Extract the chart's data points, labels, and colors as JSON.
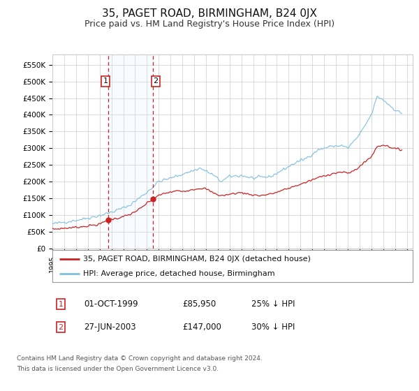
{
  "title": "35, PAGET ROAD, BIRMINGHAM, B24 0JX",
  "subtitle": "Price paid vs. HM Land Registry's House Price Index (HPI)",
  "title_fontsize": 11,
  "subtitle_fontsize": 9,
  "ylabel_ticks": [
    "£0",
    "£50K",
    "£100K",
    "£150K",
    "£200K",
    "£250K",
    "£300K",
    "£350K",
    "£400K",
    "£450K",
    "£500K",
    "£550K"
  ],
  "ytick_values": [
    0,
    50000,
    100000,
    150000,
    200000,
    250000,
    300000,
    350000,
    400000,
    450000,
    500000,
    550000
  ],
  "ylim": [
    0,
    580000
  ],
  "xlim_start": 1995.0,
  "xlim_end": 2025.5,
  "background_color": "#ffffff",
  "grid_color": "#cccccc",
  "hpi_line_color": "#7fbfdf",
  "price_line_color": "#cc2222",
  "annotation_box_color": "#cc2222",
  "shade_color": "#ddeeff",
  "transaction1_date": 1999.75,
  "transaction2_date": 2003.5,
  "transaction1_price": 85950,
  "transaction2_price": 147000,
  "transaction1_label": "1",
  "transaction2_label": "2",
  "legend_line1": "35, PAGET ROAD, BIRMINGHAM, B24 0JX (detached house)",
  "legend_line2": "HPI: Average price, detached house, Birmingham",
  "footer1": "Contains HM Land Registry data © Crown copyright and database right 2024.",
  "footer2": "This data is licensed under the Open Government Licence v3.0.",
  "table_row1": [
    "1",
    "01-OCT-1999",
    "£85,950",
    "25% ↓ HPI"
  ],
  "table_row2": [
    "2",
    "27-JUN-2003",
    "£147,000",
    "30% ↓ HPI"
  ]
}
